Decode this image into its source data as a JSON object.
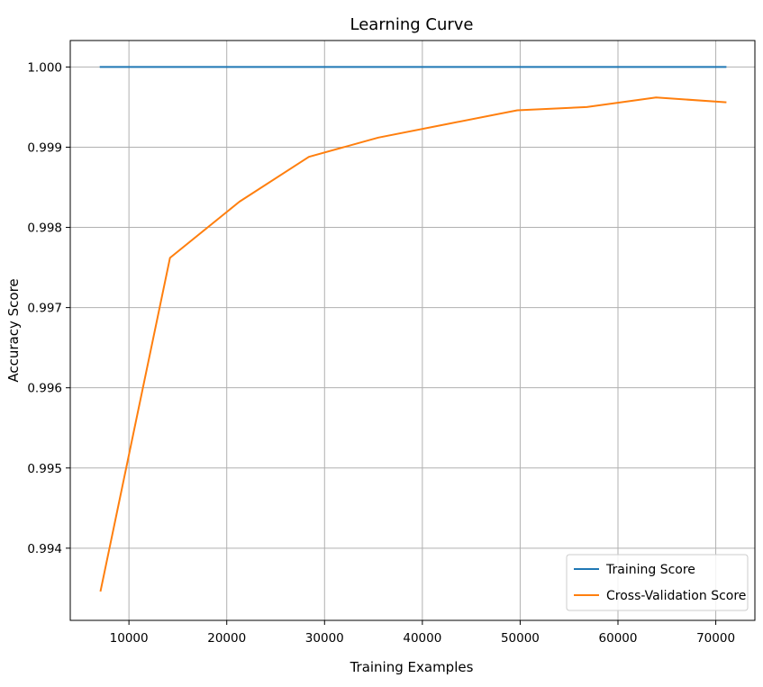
{
  "chart_data": {
    "type": "line",
    "title": "Learning Curve",
    "xlabel": "Training Examples",
    "ylabel": "Accuracy Score",
    "xlim": [
      4000,
      74000
    ],
    "ylim": [
      0.9931,
      1.00033
    ],
    "xticks": [
      10000,
      20000,
      30000,
      40000,
      50000,
      60000,
      70000
    ],
    "xtick_labels": [
      "10000",
      "20000",
      "30000",
      "40000",
      "50000",
      "60000",
      "70000"
    ],
    "yticks": [
      0.994,
      0.995,
      0.996,
      0.997,
      0.998,
      0.999,
      1.0
    ],
    "ytick_labels": [
      "0.994",
      "0.995",
      "0.996",
      "0.997",
      "0.998",
      "0.999",
      "1.000"
    ],
    "grid": true,
    "legend_position": "bottom-right",
    "x": [
      7100,
      14200,
      21300,
      28400,
      35500,
      42600,
      49700,
      56800,
      63900,
      71000
    ],
    "series": [
      {
        "name": "Training Score",
        "color": "#1f77b4",
        "values": [
          1.0,
          1.0,
          1.0,
          1.0,
          1.0,
          1.0,
          1.0,
          1.0,
          1.0,
          1.0
        ]
      },
      {
        "name": "Cross-Validation Score",
        "color": "#ff7f0e",
        "values": [
          0.99347,
          0.99762,
          0.99832,
          0.99888,
          0.99912,
          0.99929,
          0.99946,
          0.9995,
          0.99962,
          0.99956
        ]
      }
    ]
  }
}
